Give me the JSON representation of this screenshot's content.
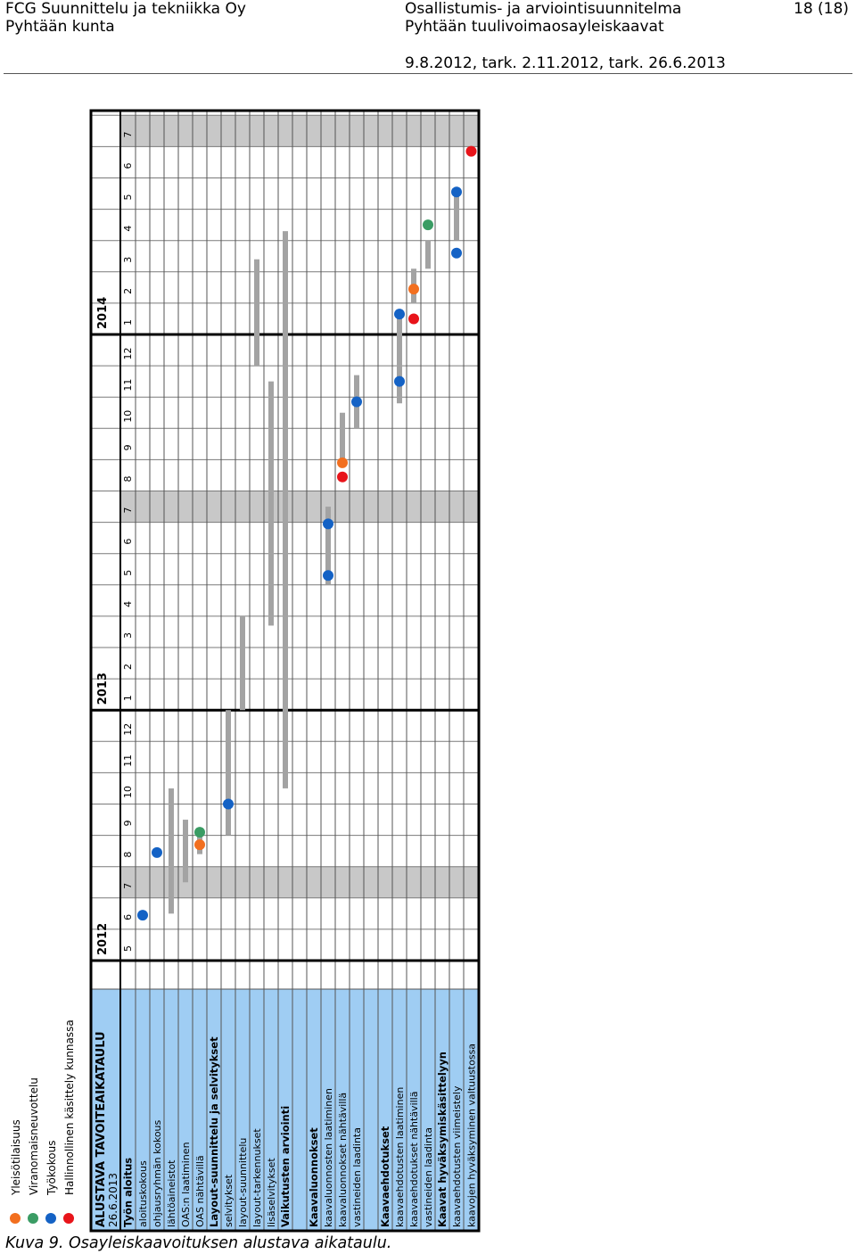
{
  "header": {
    "company": "FCG Suunnittelu ja tekniikka Oy",
    "municipality": "Pyhtään kunta",
    "doc_title": "Osallistumis- ja arviointisuunnitelma",
    "doc_subtitle": "Pyhtään tuulivoimaosayleiskaavat",
    "dates": "9.8.2012, tark. 2.11.2012, tark. 26.6.2013",
    "page": "18 (18)"
  },
  "schedule": {
    "title": "ALUSTAVA TAVOITEAIKATAULU",
    "date": "26.6.2013",
    "colors": {
      "label_bg": "#9fcdf3",
      "july_bg": "#c8c8c8",
      "bar": "#a3a3a3",
      "orange": "#f26f1f",
      "green": "#3a9c64",
      "blue": "#1462c5",
      "red": "#e8141a"
    },
    "legend": [
      {
        "color": "orange",
        "label": "Yleisötilaisuus"
      },
      {
        "color": "green",
        "label": "Viranomaisneuvottelu"
      },
      {
        "color": "blue",
        "label": "Työkokous"
      },
      {
        "color": "red",
        "label": "Hallinnollinen käsittely kunnassa"
      }
    ],
    "years": [
      {
        "label": "2012",
        "start": 0,
        "span": 8
      },
      {
        "label": "2013",
        "start": 8,
        "span": 12
      },
      {
        "label": "2014",
        "start": 20,
        "span": 7
      }
    ],
    "months": [
      "5",
      "6",
      "7",
      "8",
      "9",
      "10",
      "11",
      "12",
      "1",
      "2",
      "3",
      "4",
      "5",
      "6",
      "7",
      "8",
      "9",
      "10",
      "11",
      "12",
      "1",
      "2",
      "3",
      "4",
      "5",
      "6",
      "7"
    ],
    "july_indices": [
      2,
      14,
      26
    ],
    "rows": [
      {
        "label": "Työn aloitus",
        "bold": true
      },
      {
        "label": "aloituskokous",
        "events": [
          {
            "c": "blue",
            "m": 1.45
          }
        ]
      },
      {
        "label": "ohjausryhmän kokous",
        "events": [
          {
            "c": "blue",
            "m": 3.45
          }
        ]
      },
      {
        "label": "lähtöaineistot",
        "bars": [
          [
            1.5,
            5.5
          ]
        ]
      },
      {
        "label": "OAS:n laatiminen",
        "bars": [
          [
            2.5,
            4.5
          ]
        ]
      },
      {
        "label": "OAS nähtävillä",
        "bars": [
          [
            3.4,
            4.0
          ]
        ],
        "events": [
          {
            "c": "orange",
            "m": 3.7
          },
          {
            "c": "green",
            "m": 4.1
          }
        ]
      },
      {
        "label": "Layout-suunnittelu ja selvitykset",
        "bold": true
      },
      {
        "label": "selvitykset",
        "bars": [
          [
            4.0,
            8.0
          ]
        ],
        "events": [
          {
            "c": "blue",
            "m": 5.0
          }
        ]
      },
      {
        "label": "layout-suunnittelu",
        "bars": [
          [
            8.0,
            11.0
          ]
        ]
      },
      {
        "label": "layout-tarkennukset",
        "bars": [
          [
            19.0,
            22.4
          ]
        ]
      },
      {
        "label": "lisäselvitykset",
        "bars": [
          [
            10.7,
            18.5
          ]
        ]
      },
      {
        "label": "Vaikutusten arviointi",
        "bold": true,
        "bars": [
          [
            5.5,
            23.3
          ]
        ]
      },
      {
        "label": "",
        "bold": true
      },
      {
        "label": "Kaavaluonnokset",
        "bold": true
      },
      {
        "label": "kaavaluonnosten laatiminen",
        "bars": [
          [
            12.0,
            14.5
          ]
        ],
        "events": [
          {
            "c": "blue",
            "m": 12.3
          },
          {
            "c": "blue",
            "m": 13.95
          }
        ]
      },
      {
        "label": "kaavaluonnokset nähtävillä",
        "bars": [
          [
            15.8,
            17.5
          ]
        ],
        "events": [
          {
            "c": "red",
            "m": 15.45
          },
          {
            "c": "orange",
            "m": 15.9
          }
        ]
      },
      {
        "label": "vastineiden laadinta",
        "bars": [
          [
            17.0,
            18.7
          ]
        ],
        "events": [
          {
            "c": "blue",
            "m": 17.85
          }
        ]
      },
      {
        "label": "",
        "bold": true
      },
      {
        "label": "Kaavaehdotukset",
        "bold": true
      },
      {
        "label": "kaavaehdotusten laatiminen",
        "bars": [
          [
            17.8,
            20.8
          ]
        ],
        "events": [
          {
            "c": "blue",
            "m": 18.5
          },
          {
            "c": "blue",
            "m": 20.65
          }
        ]
      },
      {
        "label": "kaavaehdotukset nähtävillä",
        "bars": [
          [
            21.0,
            22.1
          ]
        ],
        "events": [
          {
            "c": "red",
            "m": 20.5
          },
          {
            "c": "orange",
            "m": 21.45
          }
        ]
      },
      {
        "label": "vastineiden laadinta",
        "bars": [
          [
            22.1,
            23.0
          ]
        ],
        "events": [
          {
            "c": "green",
            "m": 23.5
          }
        ]
      },
      {
        "label": "Kaavat hyväksymiskäsittelyyn",
        "bold": true
      },
      {
        "label": "kaavaehdotusten viimeistely",
        "bars": [
          [
            23.0,
            24.5
          ]
        ],
        "events": [
          {
            "c": "blue",
            "m": 22.6
          },
          {
            "c": "blue",
            "m": 24.55
          }
        ]
      },
      {
        "label": "kaavojen hyväksyminen valtuustossa",
        "events": [
          {
            "c": "red",
            "m": 25.85
          }
        ]
      },
      {
        "label": "",
        "bold": true
      }
    ]
  },
  "caption": "Kuva 9. Osayleiskaavoituksen alustava aikataulu."
}
